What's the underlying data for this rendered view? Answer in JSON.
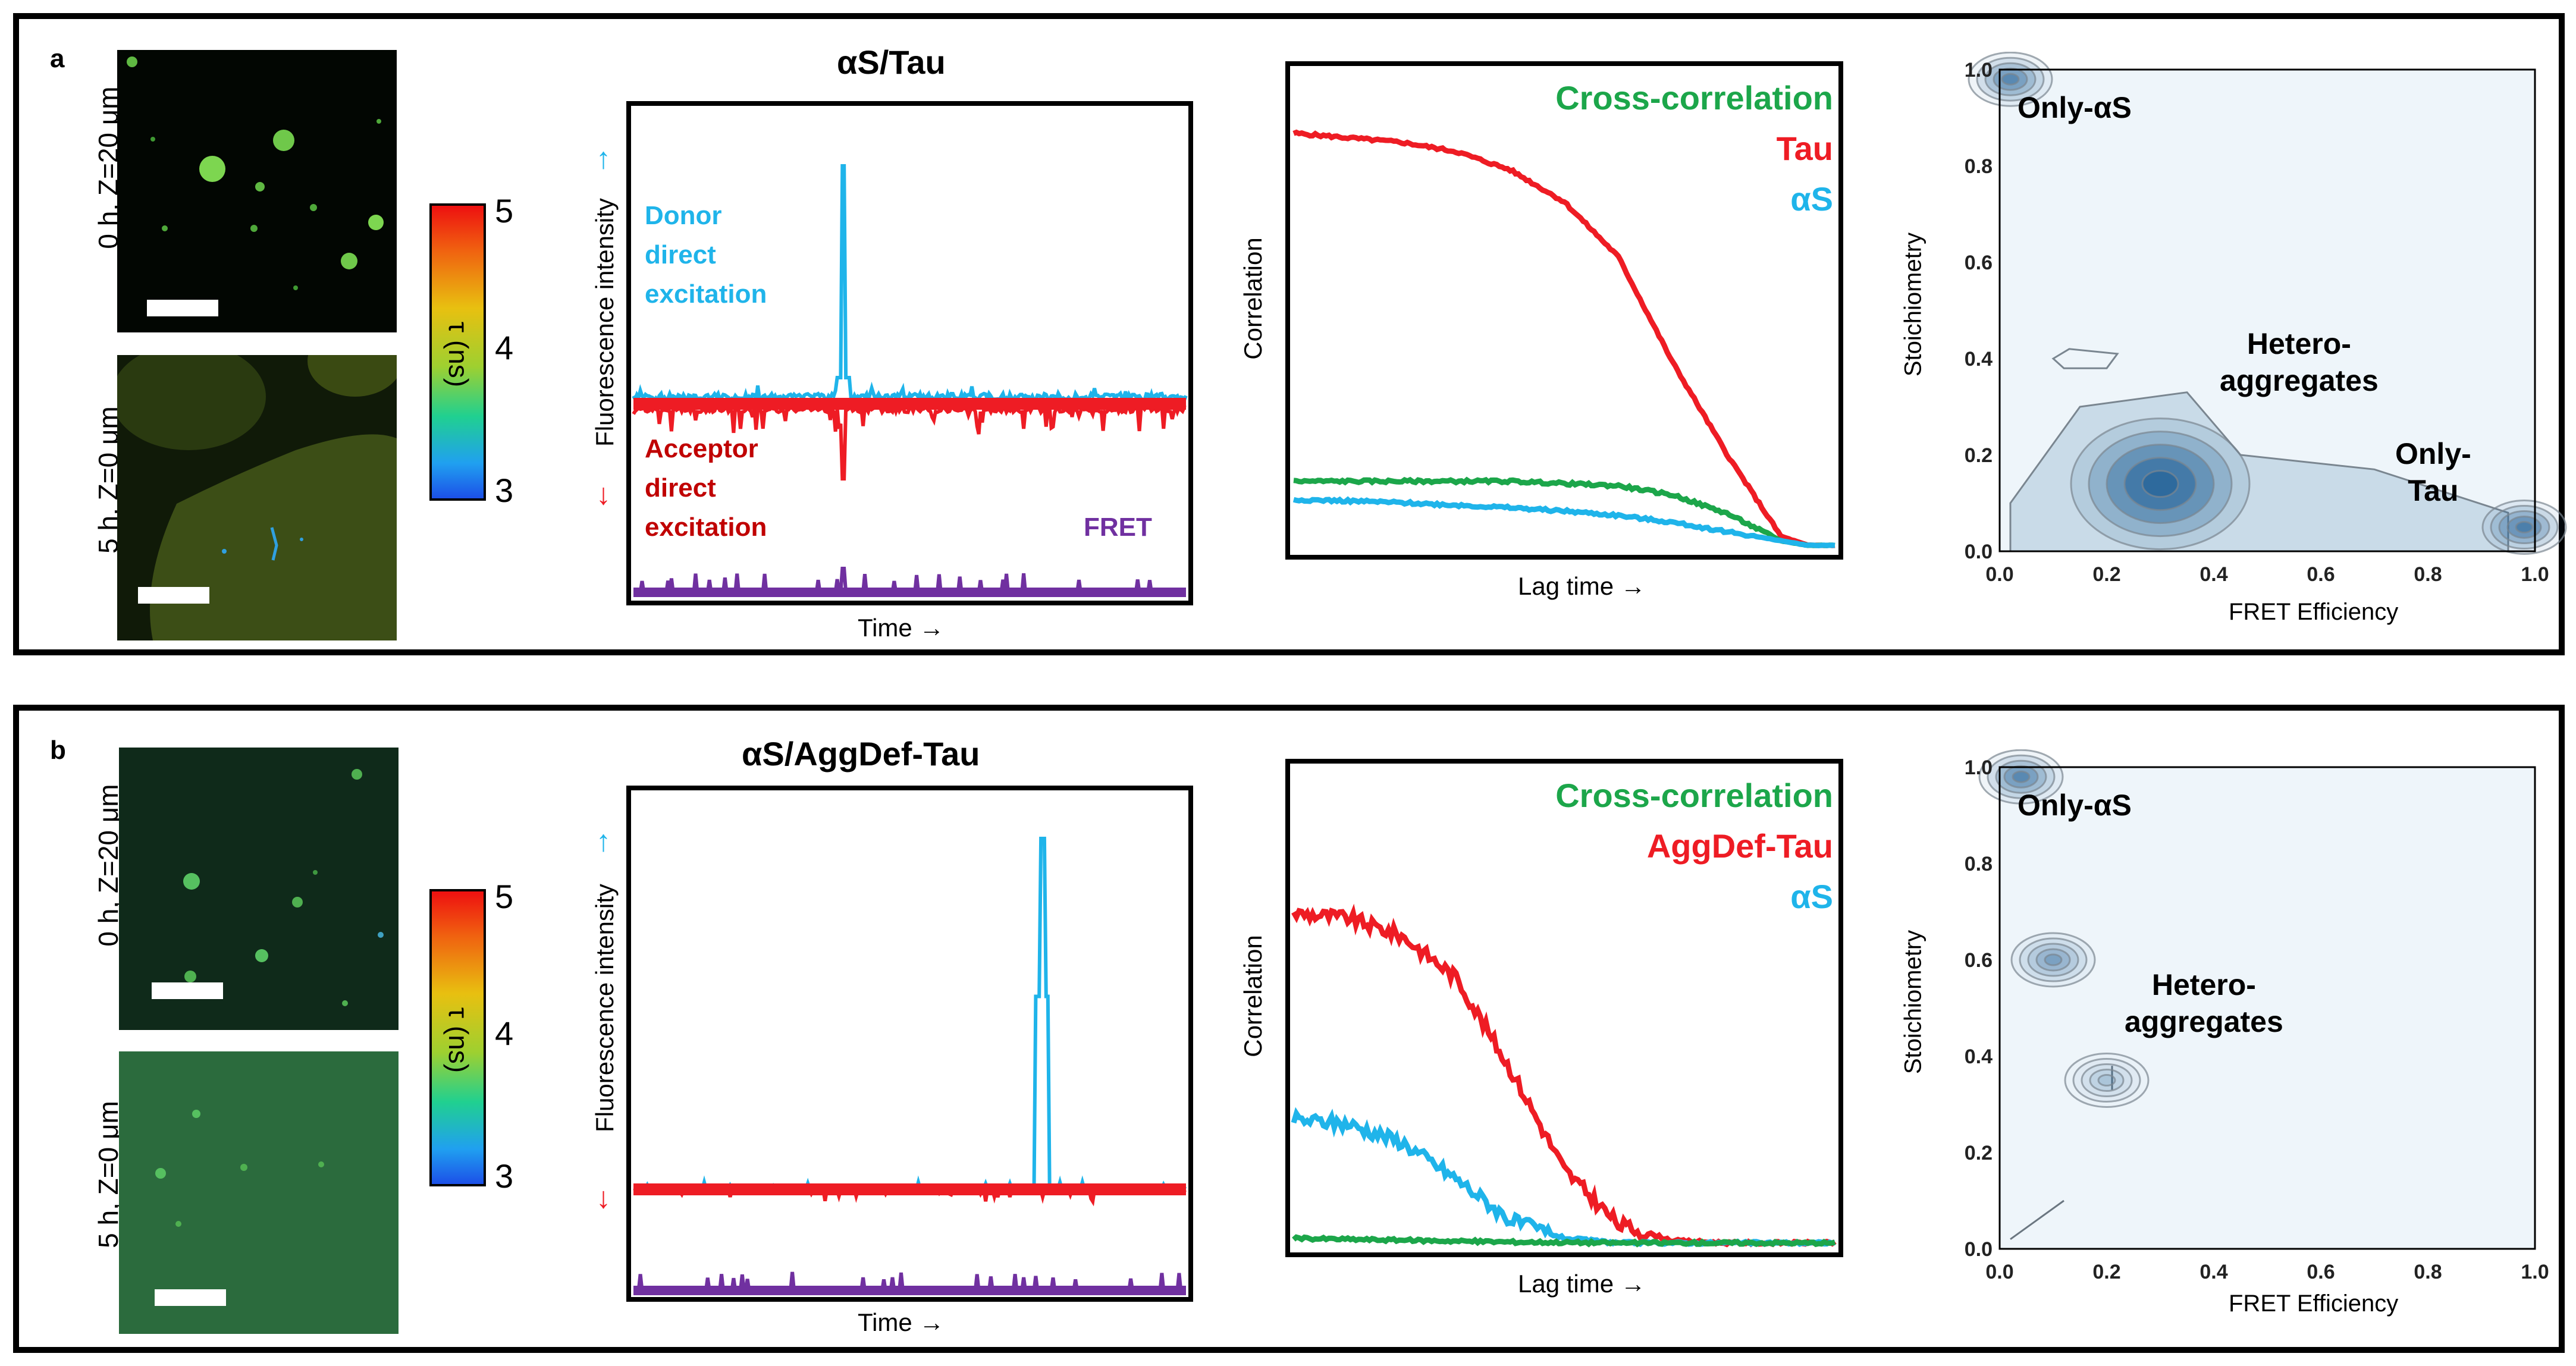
{
  "panels": [
    {
      "letter": "a",
      "micrographs": [
        {
          "label": "0 h, Z=20 μm"
        },
        {
          "label": "5 h, Z=0 μm"
        }
      ],
      "colorbar": {
        "label": "τ (ns)",
        "ticks": [
          "5",
          "4",
          "3"
        ]
      },
      "trace_chart": {
        "title": "αS/Tau",
        "xlabel": "Time →",
        "ylabel": "Fluorescence intensity",
        "arrow_up": "↑",
        "arrow_down": "↓",
        "donor_label": [
          "Donor",
          "direct",
          "excitation"
        ],
        "acceptor_label": [
          "Acceptor",
          "direct",
          "excitation"
        ],
        "fret_label": "FRET"
      },
      "corr_chart": {
        "xlabel": "Lag time →",
        "ylabel": "Correlation",
        "legend": [
          "Cross-correlation",
          "Tau",
          "αS"
        ]
      },
      "contour_chart": {
        "xlabel": "FRET Efficiency",
        "ylabel": "Stoichiometry",
        "xticks": [
          "0.0",
          "0.2",
          "0.4",
          "0.6",
          "0.8",
          "1.0"
        ],
        "yticks": [
          "0.0",
          "0.2",
          "0.4",
          "0.6",
          "0.8",
          "1.0"
        ],
        "annotations": [
          "Only-αS",
          "Hetero-",
          "aggregates",
          "Only-",
          "Tau"
        ]
      }
    },
    {
      "letter": "b",
      "micrographs": [
        {
          "label": "0 h, Z=20 μm"
        },
        {
          "label": "5 h, Z=0 μm"
        }
      ],
      "colorbar": {
        "label": "τ (ns)",
        "ticks": [
          "5",
          "4",
          "3"
        ]
      },
      "trace_chart": {
        "title": "αS/AggDef-Tau",
        "xlabel": "Time →",
        "ylabel": "Fluorescence intensity",
        "arrow_up": "↑",
        "arrow_down": "↓"
      },
      "corr_chart": {
        "xlabel": "Lag time →",
        "ylabel": "Correlation",
        "legend": [
          "Cross-correlation",
          "AggDef-Tau",
          "αS"
        ]
      },
      "contour_chart": {
        "xlabel": "FRET Efficiency",
        "ylabel": "Stoichiometry",
        "xticks": [
          "0.0",
          "0.2",
          "0.4",
          "0.6",
          "0.8",
          "1.0"
        ],
        "yticks": [
          "0.0",
          "0.2",
          "0.4",
          "0.6",
          "0.8",
          "1.0"
        ],
        "annotations": [
          "Only-αS",
          "Hetero-",
          "aggregates"
        ]
      }
    }
  ],
  "colors": {
    "donor": "#1fb4ea",
    "acceptor": "#ee1c24",
    "fret": "#7030a0",
    "cross": "#1ca64a",
    "tau": "#ee1c24",
    "as": "#1fb4ea",
    "donor_text": "#1fb4ea",
    "acceptor_text": "#c00000",
    "contour": "#1f5f96"
  },
  "chart_data": [
    {
      "type": "line",
      "panel": "a",
      "title": "αS/Tau",
      "xlabel": "Time →",
      "ylabel": "Fluorescence intensity",
      "series": [
        {
          "name": "Donor direct excitation",
          "spike_position": 0.38,
          "spike_height": 1.0,
          "baseline": 0.12
        },
        {
          "name": "Acceptor direct excitation",
          "spike_position": 0.38,
          "spike_depth": 0.45,
          "baseline": 0.1
        },
        {
          "name": "FRET",
          "baseline": 0.0,
          "spike_height": 0.08
        }
      ]
    },
    {
      "type": "line",
      "panel": "a",
      "xlabel": "Lag time →",
      "ylabel": "Correlation",
      "x": [
        0,
        0.1,
        0.2,
        0.3,
        0.4,
        0.5,
        0.6,
        0.7,
        0.8,
        0.9,
        0.95,
        1.0
      ],
      "series": [
        {
          "name": "Tau",
          "values": [
            0.9,
            0.89,
            0.88,
            0.86,
            0.82,
            0.75,
            0.63,
            0.4,
            0.2,
            0.02,
            0.0,
            0.0
          ]
        },
        {
          "name": "Cross-correlation",
          "values": [
            0.14,
            0.14,
            0.14,
            0.14,
            0.14,
            0.135,
            0.13,
            0.11,
            0.07,
            0.01,
            0.0,
            0.0
          ]
        },
        {
          "name": "αS",
          "values": [
            0.1,
            0.097,
            0.093,
            0.088,
            0.082,
            0.075,
            0.065,
            0.05,
            0.03,
            0.01,
            0.0,
            0.0
          ]
        }
      ]
    },
    {
      "type": "heatmap",
      "panel": "a",
      "xlabel": "FRET Efficiency",
      "ylabel": "Stoichiometry",
      "xlim": [
        0,
        1
      ],
      "ylim": [
        0,
        1
      ],
      "peaks": [
        {
          "x": 0.3,
          "y": 0.14,
          "level": 1.0
        },
        {
          "x": 0.02,
          "y": 0.98,
          "level": 0.6
        },
        {
          "x": 0.98,
          "y": 0.05,
          "level": 0.7
        }
      ]
    },
    {
      "type": "line",
      "panel": "b",
      "title": "αS/AggDef-Tau",
      "xlabel": "Time →",
      "ylabel": "Fluorescence intensity",
      "series": [
        {
          "name": "Donor direct excitation",
          "spike_position": 0.74,
          "spike_height": 1.0,
          "baseline": 0.03
        },
        {
          "name": "Acceptor direct excitation",
          "baseline": 0.03
        },
        {
          "name": "FRET",
          "baseline": 0.0
        }
      ]
    },
    {
      "type": "line",
      "panel": "b",
      "xlabel": "Lag time →",
      "ylabel": "Correlation",
      "x": [
        0,
        0.1,
        0.2,
        0.3,
        0.4,
        0.5,
        0.6,
        0.7,
        0.8,
        0.9,
        1.0
      ],
      "series": [
        {
          "name": "AggDef-Tau",
          "values": [
            0.72,
            0.71,
            0.67,
            0.58,
            0.38,
            0.16,
            0.04,
            0.005,
            0.0,
            0.0,
            0.0
          ]
        },
        {
          "name": "αS",
          "values": [
            0.27,
            0.26,
            0.22,
            0.14,
            0.05,
            0.01,
            0.0,
            0.0,
            0.0,
            0.0,
            0.0
          ]
        },
        {
          "name": "Cross-correlation",
          "values": [
            0.01,
            0.008,
            0.006,
            0.004,
            0.002,
            0.001,
            0.0,
            0.0,
            0.0,
            0.0,
            0.0
          ]
        }
      ]
    },
    {
      "type": "heatmap",
      "panel": "b",
      "xlabel": "FRET Efficiency",
      "ylabel": "Stoichiometry",
      "xlim": [
        0,
        1
      ],
      "ylim": [
        0,
        1
      ],
      "peaks": [
        {
          "x": 0.04,
          "y": 0.98,
          "level": 0.6
        },
        {
          "x": 0.1,
          "y": 0.6,
          "level": 0.4
        },
        {
          "x": 0.2,
          "y": 0.35,
          "level": 0.2
        }
      ]
    }
  ]
}
